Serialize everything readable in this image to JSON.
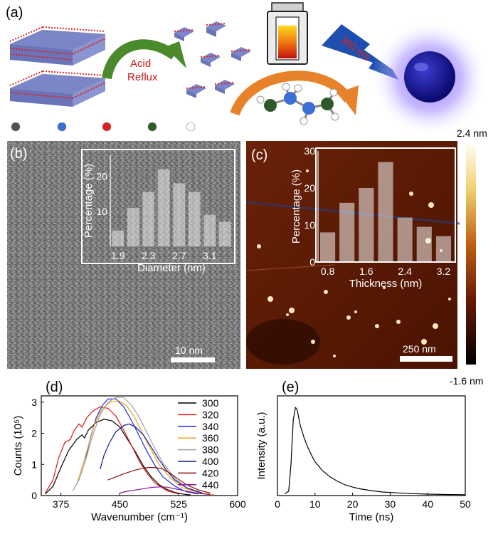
{
  "panel_a": {
    "label": "(a)",
    "arrow_text_1": "Acid",
    "arrow_text_2": "Reflux",
    "laser_text": "360 nm",
    "colors": {
      "bulk_blue": "#5a66b8",
      "bulk_red": "#e02020",
      "arrow_green": "#4a8a2a",
      "arrow_orange": "#e8822a",
      "laser_blue": "#1e4fb0",
      "dot_blue": "#1a1aa0",
      "glow": "#8a6cff"
    },
    "atom_legend": [
      {
        "name": "gray-atom",
        "color": "#505050"
      },
      {
        "name": "blue-atom",
        "color": "#3a6fd8"
      },
      {
        "name": "red-atom",
        "color": "#e02020"
      },
      {
        "name": "green-atom",
        "color": "#2e5a2a"
      },
      {
        "name": "white-atom",
        "color": "#ffffff"
      }
    ]
  },
  "colorbar": {
    "top": "2.4 nm",
    "bottom": "-1.6 nm"
  },
  "chart_data": [
    {
      "panel": "(b)",
      "type": "bar",
      "xlabel": "Diameter (nm)",
      "ylabel": "Percentage (%)",
      "categories": [
        1.9,
        2.1,
        2.3,
        2.5,
        2.7,
        2.9,
        3.1,
        3.3
      ],
      "values": [
        4.5,
        11,
        15.5,
        22,
        18,
        15.5,
        9,
        7
      ],
      "xticks": [
        "1.9",
        "2.3",
        "2.7",
        "3.1"
      ],
      "yticks": [
        "10",
        "20"
      ],
      "ylim": [
        0,
        26
      ],
      "scale_bar": "10 nm"
    },
    {
      "panel": "(c)",
      "type": "bar",
      "xlabel": "Thickness (nm)",
      "ylabel": "Percentage (%)",
      "categories": [
        0.8,
        1.2,
        1.6,
        2.0,
        2.4,
        2.8,
        3.2
      ],
      "values": [
        8,
        16,
        20,
        27,
        12,
        9.5,
        7
      ],
      "xticks": [
        "0.8",
        "1.6",
        "2.4",
        "3.2"
      ],
      "yticks": [
        "0",
        "10",
        "20",
        "30"
      ],
      "ylim": [
        0,
        30
      ],
      "scale_bar": "250 nm"
    },
    {
      "panel": "(d)",
      "type": "line",
      "xlabel": "Wavenumber (cm⁻¹)",
      "ylabel": "Counts (10⁵)",
      "xlim": [
        350,
        600
      ],
      "ylim": [
        0,
        3.2
      ],
      "xticks": [
        "375",
        "450",
        "525",
        "600"
      ],
      "yticks": [
        "0",
        "1",
        "2",
        "3"
      ],
      "series": [
        {
          "name": "300",
          "color": "#000000",
          "points": [
            [
              355,
              0.05
            ],
            [
              365,
              0.3
            ],
            [
              375,
              0.9
            ],
            [
              385,
              1.45
            ],
            [
              395,
              1.8
            ],
            [
              402,
              1.95
            ],
            [
              405,
              1.85
            ],
            [
              410,
              2.1
            ],
            [
              420,
              2.35
            ],
            [
              430,
              2.45
            ],
            [
              440,
              2.4
            ],
            [
              450,
              2.2
            ],
            [
              460,
              1.8
            ],
            [
              470,
              1.4
            ],
            [
              480,
              0.95
            ],
            [
              490,
              0.6
            ],
            [
              500,
              0.35
            ],
            [
              510,
              0.2
            ],
            [
              520,
              0.1
            ],
            [
              530,
              0.05
            ],
            [
              540,
              0.02
            ]
          ]
        },
        {
          "name": "320",
          "color": "#e01818",
          "points": [
            [
              355,
              0.08
            ],
            [
              365,
              0.5
            ],
            [
              372,
              1.2
            ],
            [
              380,
              1.7
            ],
            [
              387,
              1.8
            ],
            [
              392,
              2.1
            ],
            [
              398,
              2.3
            ],
            [
              402,
              2.2
            ],
            [
              408,
              2.5
            ],
            [
              415,
              2.7
            ],
            [
              425,
              2.85
            ],
            [
              435,
              2.8
            ],
            [
              445,
              2.55
            ],
            [
              455,
              2.1
            ],
            [
              465,
              1.6
            ],
            [
              475,
              1.1
            ],
            [
              485,
              0.7
            ],
            [
              495,
              0.4
            ],
            [
              510,
              0.15
            ],
            [
              525,
              0.05
            ]
          ]
        },
        {
          "name": "340",
          "color": "#1a2ee0",
          "points": [
            [
              405,
              1.0
            ],
            [
              412,
              1.8
            ],
            [
              420,
              2.5
            ],
            [
              428,
              2.9
            ],
            [
              435,
              3.1
            ],
            [
              445,
              3.1
            ],
            [
              455,
              2.85
            ],
            [
              465,
              2.4
            ],
            [
              475,
              1.9
            ],
            [
              485,
              1.4
            ],
            [
              495,
              0.95
            ],
            [
              505,
              0.6
            ],
            [
              520,
              0.3
            ],
            [
              535,
              0.12
            ],
            [
              550,
              0.05
            ]
          ]
        },
        {
          "name": "360",
          "color": "#f0a020",
          "points": [
            [
              395,
              0.35
            ],
            [
              402,
              0.9
            ],
            [
              410,
              1.6
            ],
            [
              418,
              2.3
            ],
            [
              428,
              2.8
            ],
            [
              438,
              3.0
            ],
            [
              448,
              3.05
            ],
            [
              458,
              2.9
            ],
            [
              468,
              2.55
            ],
            [
              478,
              2.05
            ],
            [
              488,
              1.55
            ],
            [
              500,
              1.0
            ],
            [
              515,
              0.55
            ],
            [
              530,
              0.25
            ],
            [
              550,
              0.1
            ],
            [
              570,
              0.03
            ]
          ]
        },
        {
          "name": "380",
          "color": "#a0a0a0",
          "points": [
            [
              390,
              0.15
            ],
            [
              398,
              0.5
            ],
            [
              406,
              1.1
            ],
            [
              415,
              1.9
            ],
            [
              425,
              2.6
            ],
            [
              435,
              3.0
            ],
            [
              445,
              3.15
            ],
            [
              455,
              3.15
            ],
            [
              465,
              2.9
            ],
            [
              475,
              2.5
            ],
            [
              485,
              2.0
            ],
            [
              495,
              1.5
            ],
            [
              505,
              1.05
            ],
            [
              520,
              0.55
            ],
            [
              535,
              0.25
            ],
            [
              555,
              0.08
            ]
          ]
        },
        {
          "name": "400",
          "color": "#0a1a90",
          "points": [
            [
              425,
              0.85
            ],
            [
              430,
              1.3
            ],
            [
              437,
              1.7
            ],
            [
              445,
              2.05
            ],
            [
              455,
              2.25
            ],
            [
              462,
              2.3
            ],
            [
              470,
              2.2
            ],
            [
              480,
              1.95
            ],
            [
              490,
              1.55
            ],
            [
              500,
              1.15
            ],
            [
              510,
              0.8
            ],
            [
              520,
              0.5
            ],
            [
              535,
              0.25
            ],
            [
              555,
              0.08
            ]
          ]
        },
        {
          "name": "420",
          "color": "#8a1010",
          "points": [
            [
              435,
              0.5
            ],
            [
              445,
              0.6
            ],
            [
              455,
              0.7
            ],
            [
              470,
              0.82
            ],
            [
              485,
              0.9
            ],
            [
              495,
              0.9
            ],
            [
              505,
              0.85
            ],
            [
              515,
              0.7
            ],
            [
              525,
              0.52
            ],
            [
              535,
              0.35
            ],
            [
              550,
              0.18
            ],
            [
              565,
              0.08
            ]
          ]
        },
        {
          "name": "440",
          "color": "#8a1a9a",
          "points": [
            [
              450,
              0.08
            ],
            [
              460,
              0.14
            ],
            [
              475,
              0.2
            ],
            [
              490,
              0.26
            ],
            [
              500,
              0.28
            ],
            [
              510,
              0.27
            ],
            [
              520,
              0.22
            ],
            [
              535,
              0.14
            ],
            [
              550,
              0.07
            ],
            [
              565,
              0.03
            ]
          ]
        }
      ]
    },
    {
      "panel": "(e)",
      "type": "line",
      "xlabel": "Time (ns)",
      "ylabel": "Intensity (a.u.)",
      "xlim": [
        0,
        50
      ],
      "xticks": [
        "0",
        "10",
        "20",
        "30",
        "40",
        "50"
      ],
      "series": [
        {
          "name": "",
          "color": "#000000",
          "points": [
            [
              2,
              0.02
            ],
            [
              3,
              0.05
            ],
            [
              3.6,
              0.35
            ],
            [
              4.2,
              0.85
            ],
            [
              4.8,
              0.99
            ],
            [
              5.2,
              0.97
            ],
            [
              6,
              0.8
            ],
            [
              7,
              0.66
            ],
            [
              8,
              0.55
            ],
            [
              9,
              0.46
            ],
            [
              10,
              0.38
            ],
            [
              12,
              0.28
            ],
            [
              14,
              0.21
            ],
            [
              16,
              0.16
            ],
            [
              18,
              0.12
            ],
            [
              20,
              0.095
            ],
            [
              22,
              0.075
            ],
            [
              25,
              0.055
            ],
            [
              28,
              0.04
            ],
            [
              32,
              0.03
            ],
            [
              36,
              0.022
            ],
            [
              40,
              0.016
            ],
            [
              45,
              0.012
            ],
            [
              50,
              0.01
            ]
          ]
        }
      ]
    }
  ]
}
